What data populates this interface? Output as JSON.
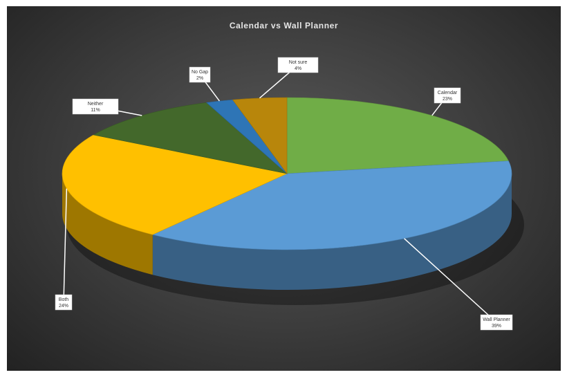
{
  "chart_data": {
    "type": "pie",
    "title": "Calendar vs Wall Planner",
    "series": [
      {
        "name": "Calendar",
        "slices": [
          {
            "label": "Calendar",
            "value": 23,
            "color": "#70ad47"
          },
          {
            "label": "Wall Planner",
            "value": 39,
            "color": "#5b9bd5"
          },
          {
            "label": "Both",
            "value": 24,
            "color": "#ffc000"
          },
          {
            "label": "Neither",
            "value": 11,
            "color": "#43682b"
          },
          {
            "label": "No Gap",
            "value": 2,
            "color": "#2e75b6"
          },
          {
            "label": "Not sure",
            "value": 4,
            "color": "#b8860b"
          }
        ]
      }
    ],
    "data_labels": [
      {
        "name": "Calendar",
        "value": "23%"
      },
      {
        "name": "Wall Planner",
        "value": "39%"
      },
      {
        "name": "Both",
        "value": "24%"
      },
      {
        "name": "Neither",
        "value": "11%"
      },
      {
        "name": "No Gap",
        "value": "2%"
      },
      {
        "name": "Not sure",
        "value": "4%"
      }
    ],
    "legend": "none",
    "style": "3d-pie"
  },
  "colors": {
    "background": "#3c3c3c",
    "label_bg": "#ffffff"
  }
}
